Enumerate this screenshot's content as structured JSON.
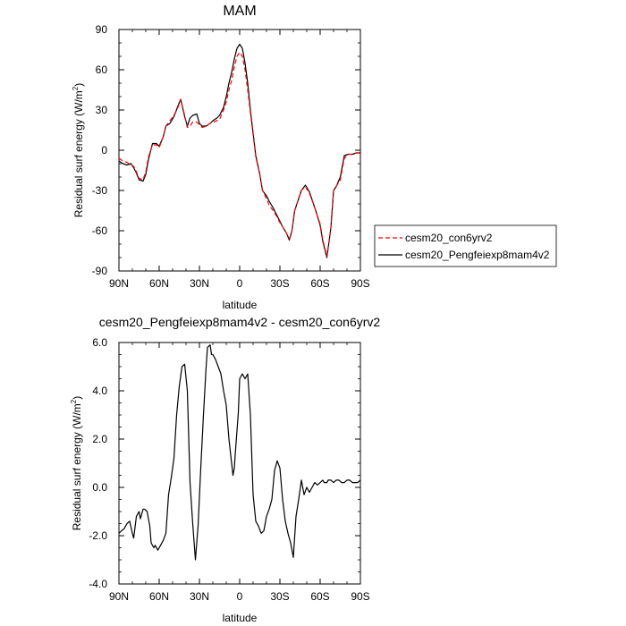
{
  "chart_data": [
    {
      "type": "line",
      "title": "MAM",
      "xlabel": "latitude",
      "ylabel": "Residual surf energy (W/m",
      "ylabel_sup": "2",
      "ylabel_end": ")",
      "xlim": [
        90,
        -90
      ],
      "ylim": [
        -90,
        90
      ],
      "x_ticks": [
        90,
        60,
        30,
        0,
        -30,
        -60,
        -90
      ],
      "x_tick_labels": [
        "90N",
        "60N",
        "30N",
        "0",
        "30S",
        "60S",
        "90S"
      ],
      "y_ticks": [
        -90,
        -60,
        -30,
        0,
        30,
        60,
        90
      ],
      "y_tick_labels": [
        "-90",
        "-60",
        "-30",
        "0",
        "30",
        "60",
        "90"
      ],
      "grid": false,
      "legend_position": "outside-right",
      "series": [
        {
          "name": "cesm20_con6yrv2",
          "color": "#ff0000",
          "dashed": true,
          "x": [
            90,
            87,
            84,
            81,
            79,
            77,
            75,
            72,
            70,
            68,
            65,
            62,
            60,
            57,
            55,
            52,
            49,
            46,
            44,
            41,
            39,
            37,
            35,
            32,
            30,
            28,
            25,
            22,
            20,
            17,
            15,
            12,
            10,
            8,
            6,
            4,
            2,
            0,
            -2,
            -4,
            -6,
            -8,
            -10,
            -12,
            -15,
            -17,
            -20,
            -22,
            -25,
            -28,
            -30,
            -32,
            -35,
            -37,
            -39,
            -41,
            -44,
            -46,
            -49,
            -52,
            -55,
            -57,
            -60,
            -62,
            -65,
            -68,
            -70,
            -72,
            -75,
            -78,
            -81,
            -84,
            -87,
            -90
          ],
          "y": [
            -6,
            -8,
            -9,
            -11,
            -12,
            -16,
            -21,
            -22,
            -16,
            -5,
            4,
            4,
            2,
            10,
            18,
            22,
            26,
            32,
            38,
            26,
            17,
            18,
            21,
            21,
            19,
            17,
            18,
            20,
            21,
            22,
            23,
            30,
            36,
            45,
            52,
            62,
            70,
            73,
            70,
            60,
            45,
            28,
            12,
            -5,
            -18,
            -30,
            -36,
            -41,
            -45,
            -50,
            -54,
            -57,
            -62,
            -66,
            -60,
            -45,
            -36,
            -30,
            -27,
            -32,
            -40,
            -46,
            -55,
            -67,
            -79,
            -58,
            -30,
            -27,
            -22,
            -6,
            -3,
            -3,
            -2,
            -2
          ]
        },
        {
          "name": "cesm20_Pengfeiexp8mam4v2",
          "color": "#000000",
          "dashed": false,
          "x": [
            90,
            87,
            84,
            81,
            79,
            77,
            75,
            72,
            70,
            68,
            65,
            62,
            60,
            57,
            55,
            52,
            49,
            46,
            44,
            41,
            39,
            37,
            35,
            32,
            30,
            28,
            25,
            22,
            20,
            17,
            15,
            12,
            10,
            8,
            6,
            4,
            2,
            0,
            -2,
            -4,
            -6,
            -8,
            -10,
            -12,
            -15,
            -17,
            -20,
            -22,
            -25,
            -28,
            -30,
            -32,
            -35,
            -37,
            -39,
            -41,
            -44,
            -46,
            -49,
            -52,
            -55,
            -57,
            -60,
            -62,
            -65,
            -68,
            -70,
            -72,
            -75,
            -78,
            -81,
            -84,
            -87,
            -90
          ],
          "y": [
            -8,
            -10,
            -11,
            -10,
            -13,
            -17,
            -22,
            -23,
            -18,
            -7,
            5,
            5,
            3,
            10,
            18,
            20,
            25,
            33,
            38,
            25,
            18,
            24,
            26,
            27,
            20,
            18,
            18,
            20,
            22,
            24,
            26,
            32,
            40,
            50,
            58,
            68,
            76,
            79,
            76,
            65,
            50,
            30,
            13,
            -4,
            -18,
            -30,
            -34,
            -38,
            -43,
            -49,
            -53,
            -57,
            -62,
            -67,
            -60,
            -45,
            -36,
            -30,
            -26,
            -31,
            -40,
            -46,
            -56,
            -68,
            -80,
            -58,
            -30,
            -27,
            -20,
            -4,
            -3,
            -3,
            -2,
            -2
          ]
        }
      ]
    },
    {
      "type": "line",
      "title": "cesm20_Pengfeiexp8mam4v2 - cesm20_con6yrv2",
      "xlabel": "latitude",
      "ylabel": "Residual surf energy (W/m",
      "ylabel_sup": "2",
      "ylabel_end": ")",
      "xlim": [
        90,
        -90
      ],
      "ylim": [
        -4,
        6
      ],
      "x_ticks": [
        90,
        60,
        30,
        0,
        -30,
        -60,
        -90
      ],
      "x_tick_labels": [
        "90N",
        "60N",
        "30N",
        "0",
        "30S",
        "60S",
        "90S"
      ],
      "y_ticks": [
        -4,
        -2,
        0,
        2,
        4,
        6
      ],
      "y_tick_labels": [
        "-4.0",
        "-2.0",
        "0.0",
        "2.0",
        "4.0",
        "6.0"
      ],
      "grid": false,
      "series": [
        {
          "color": "#000000",
          "dashed": false,
          "x": [
            90,
            88,
            86,
            84,
            82,
            80,
            79,
            77,
            75,
            74,
            72,
            71,
            69,
            67,
            66,
            64,
            63,
            61,
            59,
            57,
            55,
            53,
            51,
            49,
            47,
            45,
            43,
            41,
            39,
            37,
            35,
            33,
            31,
            29,
            27,
            25,
            24,
            22,
            21,
            20,
            18,
            16,
            14,
            12,
            10,
            8,
            6,
            5,
            4,
            3,
            1,
            0,
            -2,
            -4,
            -6,
            -8,
            -10,
            -12,
            -14,
            -16,
            -18,
            -20,
            -22,
            -24,
            -26,
            -28,
            -30,
            -32,
            -34,
            -36,
            -38,
            -40,
            -42,
            -44,
            -46,
            -48,
            -50,
            -52,
            -54,
            -56,
            -58,
            -60,
            -62,
            -63,
            -64,
            -65,
            -66,
            -67,
            -68,
            -70,
            -72,
            -74,
            -76,
            -78,
            -80,
            -82,
            -84,
            -86,
            -88,
            -90
          ],
          "y": [
            -1.9,
            -1.8,
            -1.7,
            -1.5,
            -1.4,
            -1.9,
            -2.1,
            -1.2,
            -1.0,
            -1.3,
            -0.9,
            -0.9,
            -1.0,
            -1.6,
            -2.3,
            -2.5,
            -2.4,
            -2.6,
            -2.4,
            -2.2,
            -1.9,
            -0.3,
            0.4,
            1.2,
            3.0,
            4.2,
            5.0,
            5.1,
            4.0,
            0.2,
            -1.5,
            -3.0,
            -1.6,
            0.8,
            3.0,
            5.0,
            5.8,
            5.9,
            5.5,
            5.5,
            5.3,
            5.0,
            4.7,
            4.0,
            3.4,
            2.0,
            1.0,
            0.5,
            0.8,
            1.6,
            3.1,
            4.5,
            4.7,
            4.5,
            4.7,
            3.0,
            -0.3,
            -1.4,
            -1.6,
            -1.9,
            -1.8,
            -1.2,
            -0.9,
            -0.5,
            0.7,
            1.1,
            0.8,
            -0.5,
            -1.4,
            -1.9,
            -2.3,
            -2.9,
            -1.2,
            -0.5,
            0.3,
            -0.3,
            0.0,
            -0.2,
            0.0,
            0.2,
            0.1,
            0.2,
            0.3,
            0.2,
            0.2,
            0.2,
            0.3,
            0.3,
            0.3,
            0.2,
            0.3,
            0.3,
            0.2,
            0.2,
            0.3,
            0.3,
            0.2,
            0.2,
            0.2,
            0.3
          ]
        }
      ]
    }
  ]
}
